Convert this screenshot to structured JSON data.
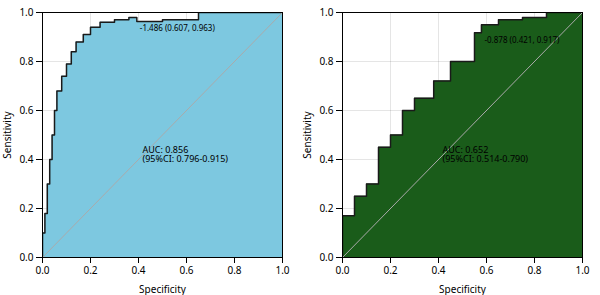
{
  "chart_data": [
    {
      "type": "area",
      "xlabel": "Specificity",
      "ylabel": "Sensitivity",
      "xlim": [
        1.0,
        0.0
      ],
      "ylim": [
        0.0,
        1.0
      ],
      "xticks": [
        {
          "value": 0.0,
          "label": "1.0"
        },
        {
          "value": 0.2,
          "label": "0.8"
        },
        {
          "value": 0.4,
          "label": "0.6"
        },
        {
          "value": 0.6,
          "label": "0.4"
        },
        {
          "value": 0.8,
          "label": "0.2"
        },
        {
          "value": 1.0,
          "label": "0.0"
        }
      ],
      "yticks": [
        {
          "value": 0.0,
          "label": "0.0"
        },
        0.2,
        0.4,
        0.6,
        0.8,
        {
          "value": 1.0,
          "label": "1.0"
        }
      ],
      "grid": true,
      "series": [
        {
          "type": "area",
          "color": "#7DC8E0",
          "x": [
            1.0,
            1.0,
            0.99,
            0.99,
            0.98,
            0.98,
            0.97,
            0.97,
            0.96,
            0.96,
            0.95,
            0.95,
            0.94,
            0.94,
            0.92,
            0.92,
            0.9,
            0.9,
            0.88,
            0.88,
            0.86,
            0.86,
            0.83,
            0.83,
            0.8,
            0.8,
            0.76,
            0.76,
            0.7,
            0.7,
            0.64,
            0.64,
            0.607,
            0.607,
            0.5,
            0.5,
            0.35,
            0.35,
            0.0
          ],
          "values": [
            0.0,
            0.1,
            0.1,
            0.18,
            0.18,
            0.3,
            0.3,
            0.4,
            0.4,
            0.5,
            0.5,
            0.6,
            0.6,
            0.68,
            0.68,
            0.74,
            0.74,
            0.79,
            0.79,
            0.84,
            0.84,
            0.88,
            0.88,
            0.91,
            0.91,
            0.94,
            0.94,
            0.96,
            0.96,
            0.97,
            0.97,
            0.98,
            0.98,
            0.963,
            0.963,
            0.97,
            0.97,
            1.0,
            1.0
          ]
        },
        {
          "type": "step",
          "color": "#1a1a1a",
          "x": [
            1.0,
            1.0,
            0.99,
            0.99,
            0.98,
            0.98,
            0.97,
            0.97,
            0.96,
            0.96,
            0.95,
            0.95,
            0.94,
            0.94,
            0.92,
            0.92,
            0.9,
            0.9,
            0.88,
            0.88,
            0.86,
            0.86,
            0.83,
            0.83,
            0.8,
            0.8,
            0.76,
            0.76,
            0.7,
            0.7,
            0.64,
            0.64,
            0.607,
            0.607,
            0.5,
            0.5,
            0.35,
            0.35,
            0.0
          ],
          "values": [
            0.0,
            0.1,
            0.1,
            0.18,
            0.18,
            0.3,
            0.3,
            0.4,
            0.4,
            0.5,
            0.5,
            0.6,
            0.6,
            0.68,
            0.68,
            0.74,
            0.74,
            0.79,
            0.79,
            0.84,
            0.84,
            0.88,
            0.88,
            0.91,
            0.91,
            0.94,
            0.94,
            0.96,
            0.96,
            0.97,
            0.97,
            0.98,
            0.98,
            0.963,
            0.963,
            0.97,
            0.97,
            1.0,
            1.0
          ]
        },
        {
          "type": "line",
          "color": "#aaaaaa",
          "x": [
            1.0,
            0.0
          ],
          "values": [
            0.0,
            1.0
          ]
        }
      ],
      "annotations": [
        {
          "text": "-1.486 (0.607, 0.963)",
          "x": 0.607,
          "y": 0.963
        },
        {
          "text": "AUC: 0.856\n(95%CI: 0.796-0.915)"
        }
      ]
    },
    {
      "type": "area",
      "xlabel": "Specificity",
      "ylabel": "Sensitivity",
      "xlim": [
        1.0,
        0.0
      ],
      "ylim": [
        0.0,
        1.0
      ],
      "xticks": [
        {
          "value": 0.0,
          "label": "1.0"
        },
        {
          "value": 0.2,
          "label": "0.8"
        },
        {
          "value": 0.4,
          "label": "0.6"
        },
        {
          "value": 0.6,
          "label": "0.4"
        },
        {
          "value": 0.8,
          "label": "0.2"
        },
        {
          "value": 1.0,
          "label": "0.0"
        }
      ],
      "yticks": [
        {
          "value": 0.0,
          "label": "0.0"
        },
        0.2,
        0.4,
        0.6,
        0.8,
        {
          "value": 1.0,
          "label": "1.0"
        }
      ],
      "grid": true,
      "series": [
        {
          "type": "area",
          "color": "#1a5c1a",
          "x": [
            1.0,
            1.0,
            0.95,
            0.95,
            0.9,
            0.9,
            0.85,
            0.85,
            0.8,
            0.8,
            0.75,
            0.75,
            0.7,
            0.7,
            0.62,
            0.62,
            0.55,
            0.55,
            0.45,
            0.45,
            0.421,
            0.421,
            0.35,
            0.35,
            0.25,
            0.25,
            0.15,
            0.15,
            0.0
          ],
          "values": [
            0.0,
            0.17,
            0.17,
            0.25,
            0.25,
            0.3,
            0.3,
            0.45,
            0.45,
            0.5,
            0.5,
            0.6,
            0.6,
            0.65,
            0.65,
            0.72,
            0.72,
            0.8,
            0.8,
            0.917,
            0.917,
            0.95,
            0.95,
            0.97,
            0.97,
            0.98,
            0.98,
            1.0,
            1.0
          ]
        },
        {
          "type": "step",
          "color": "#1a1a1a",
          "x": [
            1.0,
            1.0,
            0.95,
            0.95,
            0.9,
            0.9,
            0.85,
            0.85,
            0.8,
            0.8,
            0.75,
            0.75,
            0.7,
            0.7,
            0.62,
            0.62,
            0.55,
            0.55,
            0.45,
            0.45,
            0.421,
            0.421,
            0.35,
            0.35,
            0.25,
            0.25,
            0.15,
            0.15,
            0.0
          ],
          "values": [
            0.0,
            0.17,
            0.17,
            0.25,
            0.25,
            0.3,
            0.3,
            0.45,
            0.45,
            0.5,
            0.5,
            0.6,
            0.6,
            0.65,
            0.65,
            0.72,
            0.72,
            0.8,
            0.8,
            0.917,
            0.917,
            0.95,
            0.95,
            0.97,
            0.97,
            0.98,
            0.98,
            1.0,
            1.0
          ]
        },
        {
          "type": "line",
          "color": "#aaaaaa",
          "x": [
            1.0,
            0.0
          ],
          "values": [
            0.0,
            1.0
          ]
        }
      ],
      "annotations": [
        {
          "text": "-0.878 (0.421, 0.917)",
          "x": 0.421,
          "y": 0.917
        },
        {
          "text": "AUC: 0.652\n(95%CI: 0.514-0.790)"
        }
      ]
    }
  ]
}
